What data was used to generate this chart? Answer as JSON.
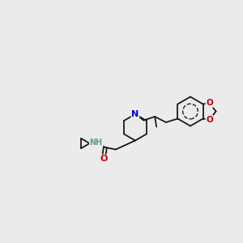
{
  "bg": "#ebebeb",
  "lc": "#1a1a1a",
  "nc": "#0000cc",
  "oc": "#cc0000",
  "nhc": "#5a9e9e",
  "fs": 6.5,
  "lw": 1.3,
  "figsize": [
    3.0,
    3.0
  ],
  "dpi": 100,
  "xlim": [
    0,
    12
  ],
  "ylim": [
    0,
    10
  ]
}
